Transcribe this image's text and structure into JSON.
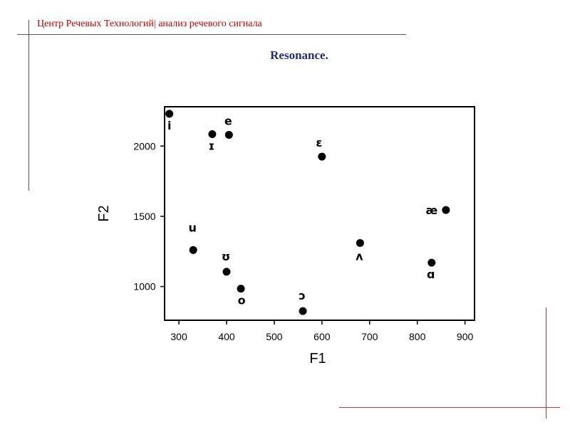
{
  "header": {
    "text": "Центр Речевых Технологий| анализ речевого сигнала"
  },
  "slide": {
    "title": "Resonance."
  },
  "colors": {
    "header_text": "#c00000",
    "title_text": "#1f2f7a",
    "rule_dark": "#555555",
    "rule_red": "#cc3333",
    "points": "#000000"
  },
  "chart_data": {
    "type": "scatter",
    "title": "",
    "xlabel": "F1",
    "ylabel": "F2",
    "xlim": [
      270,
      920
    ],
    "ylim": [
      760,
      2280
    ],
    "xticks": [
      300,
      400,
      500,
      600,
      700,
      800,
      900
    ],
    "yticks": [
      1000,
      1500,
      2000
    ],
    "grid": false,
    "points": [
      {
        "x": 280,
        "y": 2230,
        "label": "i"
      },
      {
        "x": 370,
        "y": 2085,
        "label": "ɪ"
      },
      {
        "x": 405,
        "y": 2080,
        "label": "e"
      },
      {
        "x": 600,
        "y": 1925,
        "label": "ɛ"
      },
      {
        "x": 860,
        "y": 1545,
        "label": "æ"
      },
      {
        "x": 330,
        "y": 1260,
        "label": "u"
      },
      {
        "x": 400,
        "y": 1105,
        "label": "ʊ"
      },
      {
        "x": 430,
        "y": 985,
        "label": "o"
      },
      {
        "x": 560,
        "y": 825,
        "label": "ɔ"
      },
      {
        "x": 680,
        "y": 1310,
        "label": "ʌ"
      },
      {
        "x": 830,
        "y": 1170,
        "label": "ɑ"
      }
    ]
  }
}
